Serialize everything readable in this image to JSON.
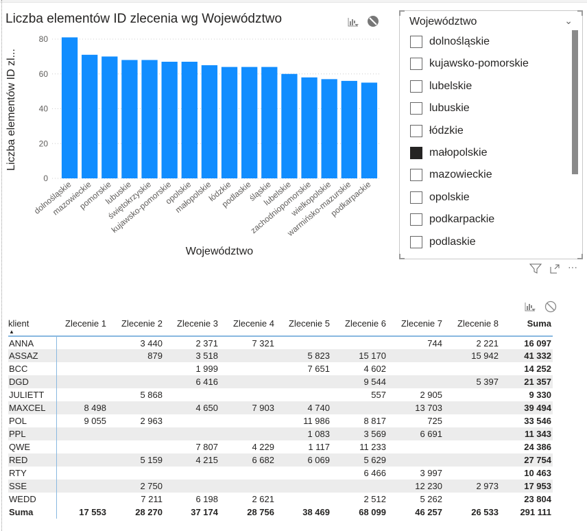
{
  "chart_data": {
    "type": "bar",
    "title": "Liczba elementów ID zlecenia wg Województwo",
    "xlabel": "Województwo",
    "ylabel": "Liczba elementów ID zl...",
    "ylim": [
      0,
      80
    ],
    "yticks": [
      "0",
      "20",
      "40",
      "60",
      "80"
    ],
    "grid": true,
    "color": "#118DFF",
    "categories": [
      "dolnośląskie",
      "mazowieckie",
      "pomorskie",
      "lubuskie",
      "świętokrzyskie",
      "kujawsko-pomorskie",
      "opolskie",
      "małopolskie",
      "łódzkie",
      "podlaskie",
      "śląskie",
      "lubelskie",
      "zachodniopomorskie",
      "wielkopolskie",
      "warmińsko-mazurskie",
      "podkarpackie"
    ],
    "values": [
      81,
      71,
      70,
      68,
      68,
      67,
      67,
      65,
      64,
      64,
      64,
      60,
      58,
      57,
      56,
      55
    ]
  },
  "chart_icons": [
    "drill-icon",
    "no-filter-icon"
  ],
  "slicer": {
    "title": "Województwo",
    "items": [
      {
        "label": "dolnośląskie",
        "checked": false
      },
      {
        "label": "kujawsko-pomorskie",
        "checked": false
      },
      {
        "label": "lubelskie",
        "checked": false
      },
      {
        "label": "lubuskie",
        "checked": false
      },
      {
        "label": "łódzkie",
        "checked": false
      },
      {
        "label": "małopolskie",
        "checked": true
      },
      {
        "label": "mazowieckie",
        "checked": false
      },
      {
        "label": "opolskie",
        "checked": false
      },
      {
        "label": "podkarpackie",
        "checked": false
      },
      {
        "label": "podlaskie",
        "checked": false
      }
    ]
  },
  "table": {
    "headers": [
      "klient",
      "Zlecenie 1",
      "Zlecenie 2",
      "Zlecenie 3",
      "Zlecenie 4",
      "Zlecenie 5",
      "Zlecenie 6",
      "Zlecenie 7",
      "Zlecenie 8",
      "Suma"
    ],
    "rows": [
      [
        "ANNA",
        "",
        "3 440",
        "2 371",
        "7 321",
        "",
        "",
        "744",
        "2 221",
        "16 097"
      ],
      [
        "ASSAZ",
        "",
        "879",
        "3 518",
        "",
        "5 823",
        "15 170",
        "",
        "15 942",
        "41 332"
      ],
      [
        "BCC",
        "",
        "",
        "1 999",
        "",
        "7 651",
        "4 602",
        "",
        "",
        "14 252"
      ],
      [
        "DGD",
        "",
        "",
        "6 416",
        "",
        "",
        "9 544",
        "",
        "5 397",
        "21 357"
      ],
      [
        "JULIETT",
        "",
        "5 868",
        "",
        "",
        "",
        "557",
        "2 905",
        "",
        "9 330"
      ],
      [
        "MAXCEL",
        "8 498",
        "",
        "4 650",
        "7 903",
        "4 740",
        "",
        "13 703",
        "",
        "39 494"
      ],
      [
        "POL",
        "9 055",
        "2 963",
        "",
        "",
        "11 986",
        "8 817",
        "725",
        "",
        "33 546"
      ],
      [
        "PPL",
        "",
        "",
        "",
        "",
        "1 083",
        "3 569",
        "6 691",
        "",
        "11 343"
      ],
      [
        "QWE",
        "",
        "",
        "7 807",
        "4 229",
        "1 117",
        "11 233",
        "",
        "",
        "24 386"
      ],
      [
        "RED",
        "",
        "5 159",
        "4 215",
        "6 682",
        "6 069",
        "5 629",
        "",
        "",
        "27 754"
      ],
      [
        "RTY",
        "",
        "",
        "",
        "",
        "",
        "6 466",
        "3 997",
        "",
        "10 463"
      ],
      [
        "SSE",
        "",
        "2 750",
        "",
        "",
        "",
        "",
        "12 230",
        "2 973",
        "17 953"
      ],
      [
        "WEDD",
        "",
        "7 211",
        "6 198",
        "2 621",
        "",
        "2 512",
        "5 262",
        "",
        "23 804"
      ]
    ],
    "total": [
      "Suma",
      "17 553",
      "28 270",
      "37 174",
      "28 756",
      "38 469",
      "68 099",
      "46 257",
      "26 533",
      "291 111"
    ]
  }
}
